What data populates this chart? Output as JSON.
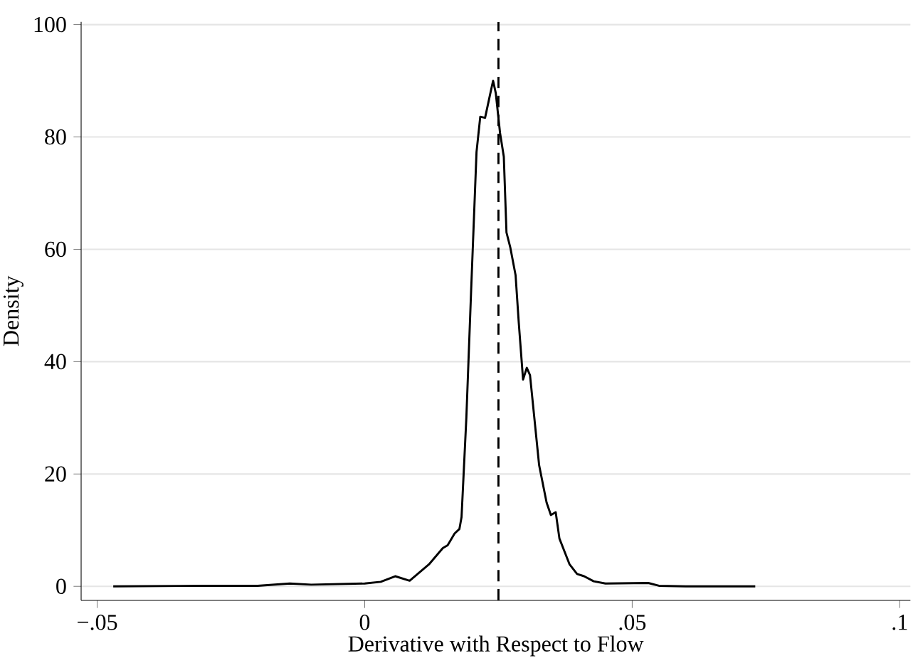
{
  "chart_data": {
    "type": "line",
    "xlabel": "Derivative with Respect to Flow",
    "ylabel": "Density",
    "x": [
      -0.047,
      -0.03,
      -0.02,
      -0.014,
      -0.01,
      0,
      0.003,
      0.0057,
      0.0084,
      0.012,
      0.0146,
      0.0155,
      0.0168,
      0.0177,
      0.0181,
      0.019,
      0.0199,
      0.0209,
      0.0216,
      0.0225,
      0.0234,
      0.024,
      0.0245,
      0.0253,
      0.026,
      0.0265,
      0.0272,
      0.0282,
      0.0288,
      0.0296,
      0.0303,
      0.0309,
      0.0326,
      0.034,
      0.0348,
      0.0357,
      0.0364,
      0.0383,
      0.0397,
      0.041,
      0.0428,
      0.045,
      0.053,
      0.055,
      0.06,
      0.073
    ],
    "series": [
      {
        "color": "#000000",
        "values": [
          0,
          0.1,
          0.1,
          0.5,
          0.3,
          0.5,
          0.8,
          1.8,
          1.0,
          3.9,
          6.8,
          7.3,
          9.4,
          10.2,
          12.3,
          30,
          52.8,
          77.3,
          83.6,
          83.4,
          87.4,
          90,
          87.8,
          80.7,
          76.5,
          63,
          60.4,
          55.4,
          46.9,
          36.8,
          38.9,
          37.6,
          21.6,
          14.9,
          12.7,
          13.2,
          8.5,
          3.9,
          2.2,
          1.8,
          0.9,
          0.5,
          0.6,
          0.1,
          0,
          0
        ]
      }
    ],
    "xlim": [
      -0.053,
      0.102
    ],
    "ylim": [
      -2.5,
      100.5
    ],
    "xticks": [
      {
        "value": -0.05,
        "label": "−.05"
      },
      0,
      {
        "value": 0.05,
        "label": ".05"
      },
      {
        "value": 0.1,
        "label": ".1"
      }
    ],
    "yticks": [
      0,
      20,
      40,
      60,
      80,
      100
    ],
    "grid": "y",
    "marker": "none",
    "line_style": "solid",
    "ref_lines": [
      {
        "axis": "x",
        "value": 0.025,
        "line_style": "dashed",
        "color": "#000000"
      }
    ]
  }
}
